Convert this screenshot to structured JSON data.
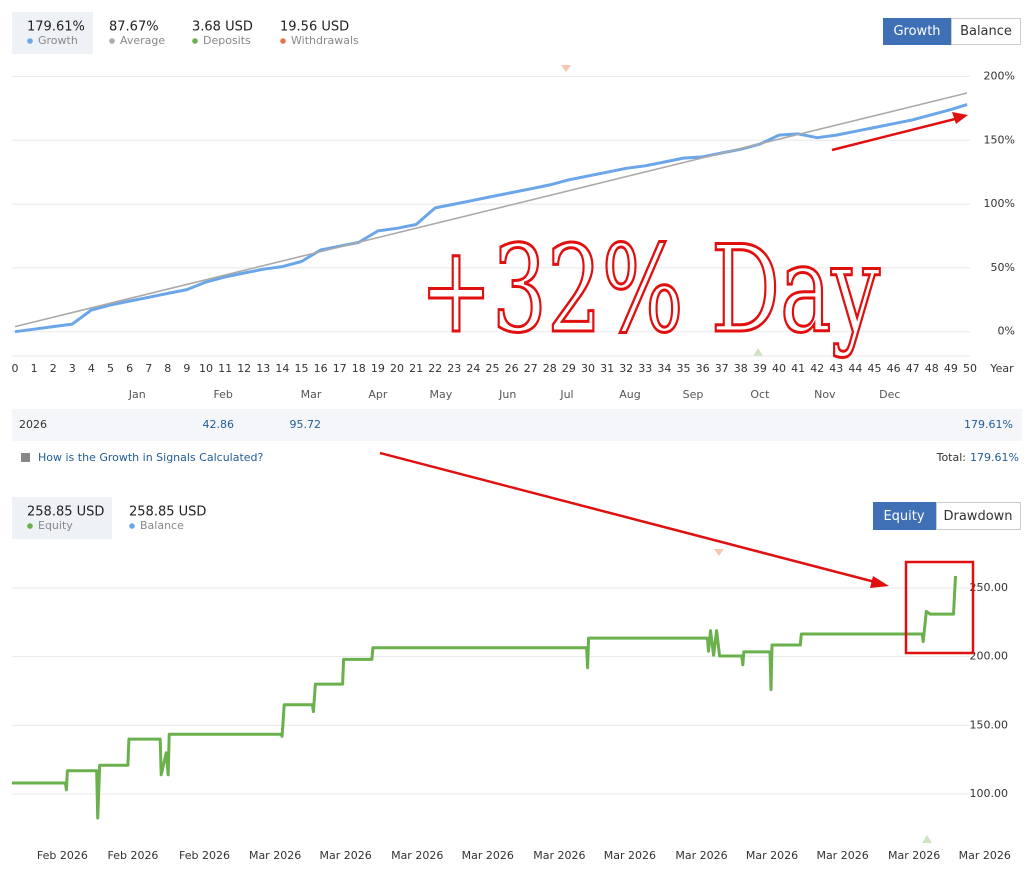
{
  "growth_panel": {
    "tabs": [
      "Growth",
      "Balance"
    ],
    "extra_legend": [
      {
        "name": "Deposits",
        "summary": "3.68 USD",
        "color": "#6ab04c"
      },
      {
        "name": "Withdrawals",
        "summary": "19.56 USD",
        "color": "#e8734a"
      }
    ],
    "table": {
      "year": "2026",
      "cells": [
        "42.86",
        "95.72"
      ],
      "total": "179.61%"
    },
    "link": "How is the Growth in Signals Calculated?",
    "total_label": "Total:",
    "total_value": "179.61%"
  },
  "equity_panel": {
    "tabs": [
      "Equity",
      "Drawdown"
    ]
  },
  "annotation": "+32% Day",
  "chart_data": [
    {
      "type": "line",
      "x_label": "Year",
      "xlim": [
        0,
        50
      ],
      "xticks": [
        0,
        1,
        2,
        3,
        4,
        5,
        6,
        7,
        8,
        9,
        10,
        11,
        12,
        13,
        14,
        15,
        16,
        17,
        18,
        19,
        20,
        21,
        22,
        23,
        24,
        25,
        26,
        27,
        28,
        29,
        30,
        31,
        32,
        33,
        34,
        35,
        36,
        37,
        38,
        39,
        40,
        41,
        42,
        43,
        44,
        45,
        46,
        47,
        48,
        49,
        50
      ],
      "month_ticks": [
        {
          "value": 6.4,
          "label": "Jan"
        },
        {
          "value": 10.9,
          "label": "Feb"
        },
        {
          "value": 15.5,
          "label": "Mar"
        },
        {
          "value": 19,
          "label": "Apr"
        },
        {
          "value": 22.3,
          "label": "May"
        },
        {
          "value": 25.8,
          "label": "Jun"
        },
        {
          "value": 28.9,
          "label": "Jul"
        },
        {
          "value": 32.2,
          "label": "Aug"
        },
        {
          "value": 35.5,
          "label": "Sep"
        },
        {
          "value": 39,
          "label": "Oct"
        },
        {
          "value": 42.4,
          "label": "Nov"
        },
        {
          "value": 45.8,
          "label": "Dec"
        }
      ],
      "ylim": [
        -19,
        216
      ],
      "yticks": [
        {
          "value": 0,
          "label": "0%"
        },
        {
          "value": 50,
          "label": "50%"
        },
        {
          "value": 100,
          "label": "100%"
        },
        {
          "value": 150,
          "label": "150%"
        },
        {
          "value": 200,
          "label": "200%"
        }
      ],
      "grid": true,
      "series": [
        {
          "name": "Growth",
          "summary": "179.61%",
          "color": "#6aa6e8",
          "x": [
            0,
            1,
            2,
            3,
            4,
            5,
            6,
            7,
            8,
            9,
            10,
            11,
            12,
            13,
            14,
            15,
            16,
            17,
            18,
            19,
            20,
            21,
            22,
            23,
            24,
            25,
            26,
            27,
            28,
            29,
            30,
            31,
            32,
            33,
            34,
            35,
            36,
            37,
            38,
            39,
            40,
            41,
            42,
            43,
            44,
            45,
            46,
            47,
            48,
            49,
            49.85
          ],
          "values": [
            0,
            2,
            4,
            6,
            17,
            21,
            24,
            27,
            30,
            33,
            39,
            43,
            46,
            49,
            51,
            55,
            64,
            67,
            70,
            79,
            81,
            84,
            97,
            100,
            103,
            106,
            109,
            112,
            115,
            119,
            122,
            125,
            128,
            130,
            133,
            136,
            137,
            140,
            143,
            147,
            154,
            155,
            152,
            154,
            157,
            160,
            163,
            166,
            170,
            174,
            178
          ]
        },
        {
          "name": "Average",
          "summary": "87.67%",
          "color": "#aaaaaa",
          "x": [
            0,
            49.85
          ],
          "values": [
            4,
            187
          ]
        }
      ]
    },
    {
      "type": "line",
      "xlim": [
        0,
        100
      ],
      "xticks": [
        {
          "value": 5,
          "label": "Feb 2026"
        },
        {
          "value": 12,
          "label": "Feb 2026"
        },
        {
          "value": 19.1,
          "label": "Feb 2026"
        },
        {
          "value": 26.1,
          "label": "Mar 2026"
        },
        {
          "value": 33.1,
          "label": "Mar 2026"
        },
        {
          "value": 40.2,
          "label": "Mar 2026"
        },
        {
          "value": 47.2,
          "label": "Mar 2026"
        },
        {
          "value": 54.3,
          "label": "Mar 2026"
        },
        {
          "value": 61.3,
          "label": "Mar 2026"
        },
        {
          "value": 68.4,
          "label": "Mar 2026"
        },
        {
          "value": 75.4,
          "label": "Mar 2026"
        },
        {
          "value": 82.4,
          "label": "Mar 2026"
        },
        {
          "value": 89.5,
          "label": "Mar 2026"
        },
        {
          "value": 96.5,
          "label": "Mar 2026"
        }
      ],
      "ylim": [
        66.5,
        270.4
      ],
      "yticks": [
        {
          "value": 100,
          "label": "100.00"
        },
        {
          "value": 150,
          "label": "150.00"
        },
        {
          "value": 200,
          "label": "200.00"
        },
        {
          "value": 250,
          "label": "250.00"
        }
      ],
      "grid": true,
      "series": [
        {
          "name": "Equity",
          "summary": "258.85 USD",
          "color": "#6ab04c",
          "x": [
            0,
            5.3,
            5.4,
            5.5,
            8.4,
            8.5,
            8.7,
            11.5,
            11.6,
            14.7,
            14.8,
            15.3,
            15.5,
            15.6,
            26.7,
            26.8,
            27.0,
            29.8,
            29.9,
            30.1,
            32.8,
            32.9,
            35.7,
            35.8,
            57.0,
            57.1,
            57.2,
            69.0,
            69.1,
            69.3,
            69.6,
            69.9,
            70.2,
            72.4,
            72.5,
            72.6,
            75.2,
            75.3,
            75.4,
            78.2,
            78.3,
            90.3,
            90.4,
            90.7,
            91.1,
            93.4,
            93.6
          ],
          "values": [
            108,
            108,
            103,
            117,
            117,
            82.5,
            121,
            121,
            140,
            140,
            114,
            130,
            114,
            143.5,
            143.5,
            142,
            165,
            165,
            160,
            180,
            180,
            198,
            198,
            206.5,
            206.5,
            192,
            213.5,
            213.5,
            204,
            219,
            201,
            219,
            200.5,
            200.5,
            194,
            203.5,
            203.5,
            176,
            208.5,
            208.5,
            216.5,
            216.5,
            211,
            233,
            231,
            231,
            258.85
          ]
        },
        {
          "name": "Balance",
          "summary": "258.85 USD",
          "color": "#6aa6e8"
        }
      ]
    }
  ]
}
